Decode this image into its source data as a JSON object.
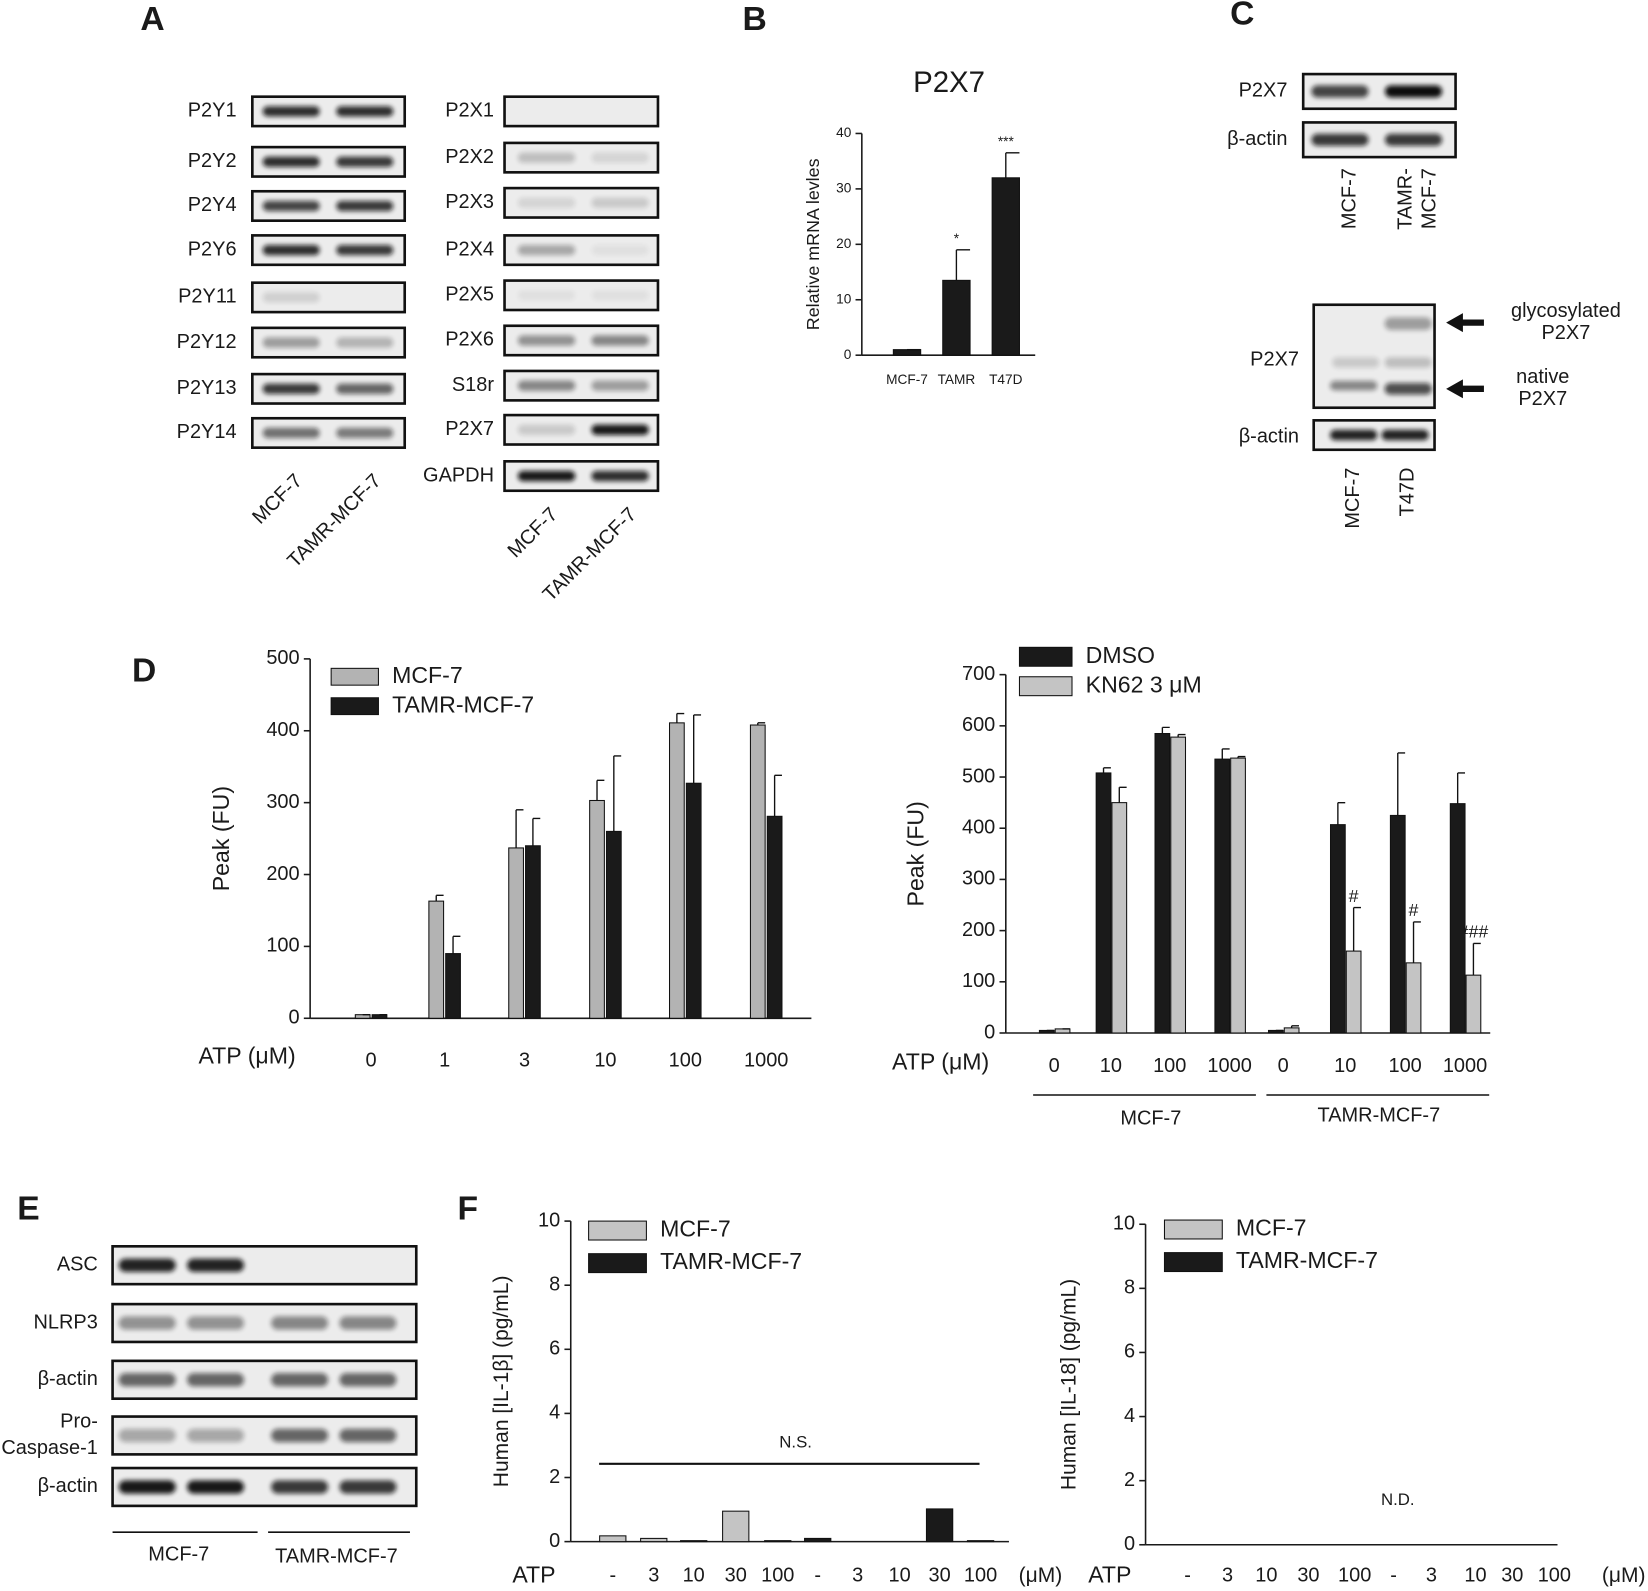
{
  "panel_labels": [
    "A",
    "B",
    "C",
    "D",
    "E",
    "F"
  ],
  "blots": {
    "A_left": {
      "rows": [
        "P2Y1",
        "P2Y2",
        "P2Y4",
        "P2Y6",
        "P2Y11",
        "P2Y12",
        "P2Y13",
        "P2Y14"
      ],
      "lanes": [
        "MCF-7",
        "TAMR-MCF-7"
      ]
    },
    "A_right": {
      "rows": [
        "P2X1",
        "P2X2",
        "P2X3",
        "P2X4",
        "P2X5",
        "P2X6",
        "S18r",
        "P2X7",
        "GAPDH"
      ],
      "lanes": [
        "MCF-7",
        "TAMR-MCF-7"
      ]
    },
    "C_top": {
      "rows": [
        "P2X7",
        "β-actin"
      ],
      "lanes": [
        "MCF-7",
        [
          "TAMR-",
          "MCF-7"
        ]
      ]
    },
    "C_bottom": {
      "rows": [
        "P2X7",
        "β-actin"
      ],
      "lanes": [
        "MCF-7",
        "T47D"
      ],
      "arrows": [
        [
          "glycosylated",
          "P2X7"
        ],
        [
          "native",
          "P2X7"
        ]
      ]
    },
    "E": {
      "rows": [
        "ASC",
        "NLRP3",
        "β-actin",
        [
          "Pro-",
          "Caspase-1"
        ],
        "β-actin"
      ],
      "groups": [
        "MCF-7",
        "TAMR-MCF-7"
      ]
    }
  },
  "chart_data": [
    {
      "type": "bar",
      "title": "P2X7",
      "ylabel": "Relative mRNA levles",
      "categories": [
        "MCF-7",
        "TAMR",
        "T47D"
      ],
      "series": [
        {
          "color": "#1a1a1a",
          "values": [
            1,
            13.5,
            32
          ],
          "errors": [
            0,
            5.5,
            4.5
          ],
          "annotations": [
            null,
            "*",
            "***"
          ]
        }
      ],
      "ylim": [
        0,
        40
      ],
      "yticks": [
        0,
        10,
        20,
        30,
        40
      ]
    },
    {
      "type": "bar",
      "ylabel": "Peak (FU)",
      "xlabel": "ATP (μM)",
      "categories": [
        "0",
        "1",
        "3",
        "10",
        "100",
        "1000"
      ],
      "series": [
        {
          "name": "MCF-7",
          "color": "#b3b3b3",
          "values": [
            5,
            163,
            237,
            303,
            411,
            408
          ],
          "errors": [
            0,
            8,
            53,
            28,
            13,
            3
          ]
        },
        {
          "name": "TAMR-MCF-7",
          "color": "#1a1a1a",
          "values": [
            5,
            90,
            240,
            260,
            327,
            281
          ],
          "errors": [
            0,
            24,
            38,
            105,
            95,
            57
          ]
        }
      ],
      "ylim": [
        0,
        500
      ],
      "yticks": [
        0,
        100,
        200,
        300,
        400,
        500
      ]
    },
    {
      "type": "bar",
      "ylabel": "Peak (FU)",
      "xlabel": "ATP (μM)",
      "categories": [
        "0",
        "10",
        "100",
        "1000",
        "0",
        "10",
        "100",
        "1000"
      ],
      "groups": [
        "MCF-7",
        "TAMR-MCF-7"
      ],
      "series": [
        {
          "name": "DMSO",
          "color": "#1a1a1a",
          "values": [
            5,
            508,
            585,
            535,
            5,
            407,
            425,
            448
          ],
          "errors": [
            0,
            10,
            12,
            20,
            0,
            43,
            122,
            60
          ]
        },
        {
          "name": "KN62 3 μM",
          "color": "#c4c4c4",
          "values": [
            8,
            450,
            578,
            537,
            10,
            160,
            137,
            113
          ],
          "errors": [
            0,
            30,
            5,
            3,
            4,
            85,
            80,
            62
          ],
          "annotations": [
            null,
            null,
            null,
            null,
            null,
            "#",
            "#",
            "###"
          ]
        }
      ],
      "ylim": [
        0,
        700
      ],
      "yticks": [
        0,
        100,
        200,
        300,
        400,
        500,
        600,
        700
      ]
    },
    {
      "type": "bar",
      "ylabel": "Human [IL-1β] (pg/mL)",
      "xlabel": "ATP",
      "unit": "(μM)",
      "categories": [
        "-",
        "3",
        "10",
        "30",
        "100",
        "-",
        "3",
        "10",
        "30",
        "100"
      ],
      "series": [
        {
          "name": "MCF-7",
          "color": "#c4c4c4",
          "values": [
            0.18,
            0.1,
            0.03,
            0.95,
            0.03,
            null,
            null,
            null,
            null,
            null
          ]
        },
        {
          "name": "TAMR-MCF-7",
          "color": "#1a1a1a",
          "values": [
            null,
            null,
            null,
            null,
            null,
            0.1,
            0,
            0,
            1.02,
            0.03
          ]
        }
      ],
      "annotation": "N.S.",
      "ylim": [
        0,
        10
      ],
      "yticks": [
        0,
        2,
        4,
        6,
        8,
        10
      ]
    },
    {
      "type": "bar",
      "ylabel": "Human [IL-18] (pg/mL)",
      "xlabel": "ATP",
      "unit": "(μM)",
      "categories": [
        "-",
        "3",
        "10",
        "30",
        "100",
        "-",
        "3",
        "10",
        "30",
        "100"
      ],
      "series": [
        {
          "name": "MCF-7",
          "color": "#c4c4c4",
          "values": [
            null,
            null,
            null,
            null,
            null,
            null,
            null,
            null,
            null,
            null
          ]
        },
        {
          "name": "TAMR-MCF-7",
          "color": "#1a1a1a",
          "values": [
            null,
            null,
            null,
            null,
            null,
            null,
            null,
            null,
            null,
            null
          ]
        }
      ],
      "annotation": "N.D.",
      "ylim": [
        0,
        10
      ],
      "yticks": [
        0,
        2,
        4,
        6,
        8,
        10
      ]
    }
  ]
}
